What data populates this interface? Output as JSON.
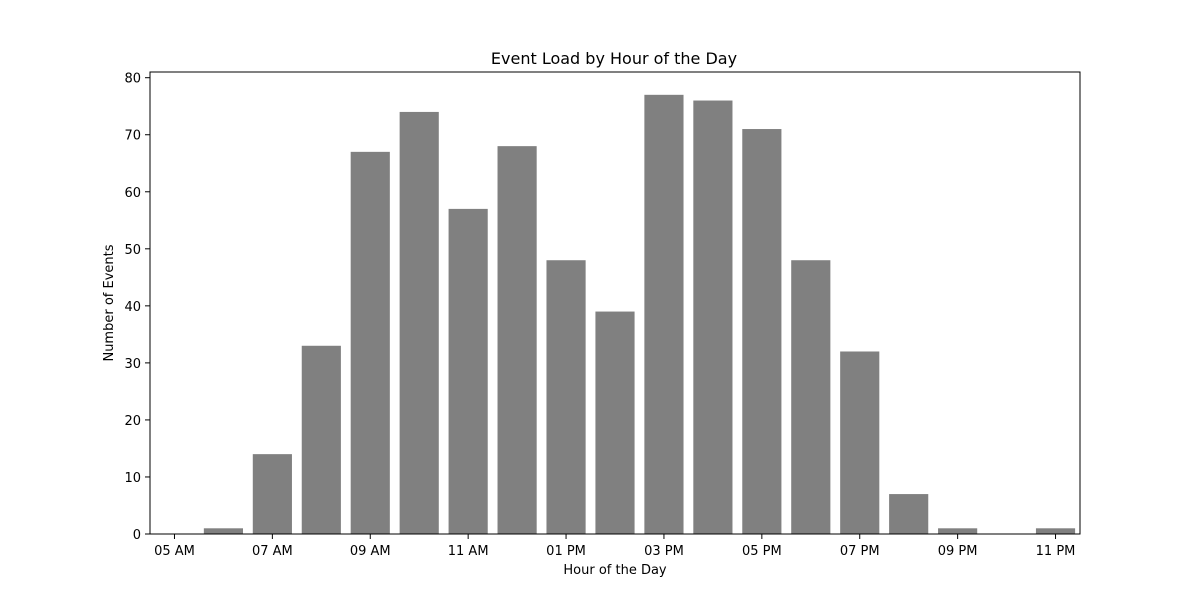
{
  "chart_data": {
    "type": "bar",
    "title": "Event Load by Hour of the Day",
    "xlabel": "Hour of the Day",
    "ylabel": "Number of Events",
    "x": [
      5,
      6,
      7,
      8,
      9,
      10,
      11,
      12,
      13,
      14,
      15,
      16,
      17,
      18,
      19,
      20,
      21,
      22,
      23
    ],
    "values": [
      0,
      1,
      14,
      33,
      67,
      74,
      57,
      68,
      48,
      39,
      77,
      76,
      71,
      48,
      32,
      7,
      1,
      0,
      1
    ],
    "xticks": [
      {
        "x": 5,
        "label": "05 AM"
      },
      {
        "x": 7,
        "label": "07 AM"
      },
      {
        "x": 9,
        "label": "09 AM"
      },
      {
        "x": 11,
        "label": "11 AM"
      },
      {
        "x": 13,
        "label": "01 PM"
      },
      {
        "x": 15,
        "label": "03 PM"
      },
      {
        "x": 17,
        "label": "05 PM"
      },
      {
        "x": 19,
        "label": "07 PM"
      },
      {
        "x": 21,
        "label": "09 PM"
      },
      {
        "x": 23,
        "label": "11 PM"
      }
    ],
    "yticks": [
      0,
      10,
      20,
      30,
      40,
      50,
      60,
      70,
      80
    ],
    "ylim": [
      0,
      81
    ],
    "xlim": [
      4.5,
      23.5
    ],
    "grid": false,
    "legend": "none",
    "bar_color": "#808080"
  }
}
